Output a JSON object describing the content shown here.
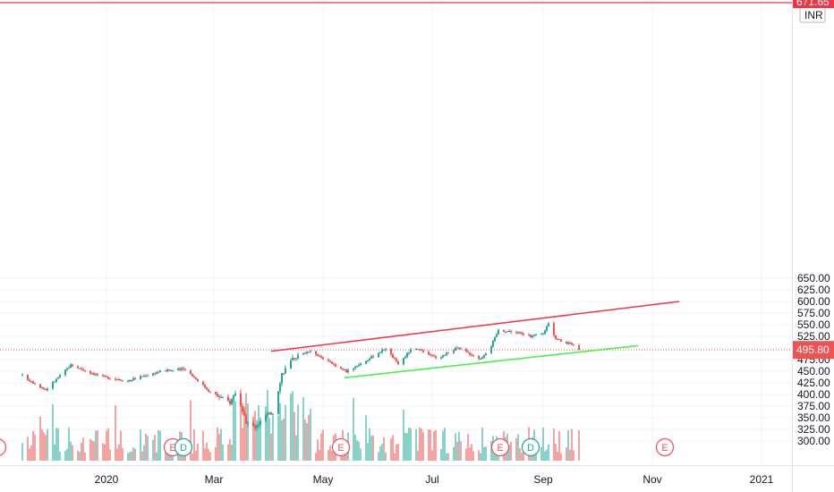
{
  "chart_data": {
    "type": "candlestick",
    "currency": "INR",
    "y_axis": {
      "min": 270,
      "max": 675,
      "ticks": [
        "650.00",
        "625.00",
        "600.00",
        "575.00",
        "550.00",
        "525.00",
        "500.00",
        "475.00",
        "450.00",
        "425.00",
        "400.00",
        "375.00",
        "350.00",
        "325.00",
        "300.00"
      ]
    },
    "x_axis": {
      "labels": [
        "2020",
        "Mar",
        "May",
        "Jul",
        "Sep",
        "Nov",
        "2021"
      ]
    },
    "last_price": {
      "value": 495.8,
      "label": "495.80",
      "color": "#ef5350"
    },
    "high_line": {
      "value": 671.65,
      "label": "671.65",
      "color": "#f23645"
    },
    "colors": {
      "up": "#26a69a",
      "down": "#ef5350",
      "upper_trendline": "#f23645",
      "lower_trendline": "#4ef04e"
    },
    "trendlines": [
      {
        "name": "",
        "color": "upper",
        "from": {
          "date": "2020-04-02",
          "price": 493
        },
        "to": {
          "date": "2020-11-16",
          "price": 600
        }
      },
      {
        "name": "",
        "color": "lower",
        "from": {
          "date": "2020-05-13",
          "price": 436
        },
        "to": {
          "date": "2020-10-24",
          "price": 505
        }
      }
    ],
    "keypoints": [
      {
        "date": "2019-11-15",
        "price": 440
      },
      {
        "date": "2019-11-28",
        "price": 410
      },
      {
        "date": "2019-12-12",
        "price": 463
      },
      {
        "date": "2019-12-30",
        "price": 438
      },
      {
        "date": "2020-01-13",
        "price": 430
      },
      {
        "date": "2020-01-31",
        "price": 450
      },
      {
        "date": "2020-02-14",
        "price": 455
      },
      {
        "date": "2020-02-28",
        "price": 405
      },
      {
        "date": "2020-03-10",
        "price": 383
      },
      {
        "date": "2020-03-13",
        "price": 405
      },
      {
        "date": "2020-03-19",
        "price": 340
      },
      {
        "date": "2020-03-24",
        "price": 328
      },
      {
        "date": "2020-03-30",
        "price": 355
      },
      {
        "date": "2020-04-03",
        "price": 360
      },
      {
        "date": "2020-04-08",
        "price": 445
      },
      {
        "date": "2020-04-15",
        "price": 480
      },
      {
        "date": "2020-04-24",
        "price": 495
      },
      {
        "date": "2020-05-05",
        "price": 468
      },
      {
        "date": "2020-05-14",
        "price": 450
      },
      {
        "date": "2020-05-26",
        "price": 475
      },
      {
        "date": "2020-06-05",
        "price": 500
      },
      {
        "date": "2020-06-12",
        "price": 465
      },
      {
        "date": "2020-06-20",
        "price": 500
      },
      {
        "date": "2020-07-04",
        "price": 478
      },
      {
        "date": "2020-07-15",
        "price": 500
      },
      {
        "date": "2020-07-28",
        "price": 477
      },
      {
        "date": "2020-08-03",
        "price": 505
      },
      {
        "date": "2020-08-07",
        "price": 538
      },
      {
        "date": "2020-08-16",
        "price": 535
      },
      {
        "date": "2020-08-25",
        "price": 525
      },
      {
        "date": "2020-09-01",
        "price": 530
      },
      {
        "date": "2020-09-04",
        "price": 555
      },
      {
        "date": "2020-09-08",
        "price": 520
      },
      {
        "date": "2020-09-16",
        "price": 508
      },
      {
        "date": "2020-09-21",
        "price": 496
      }
    ],
    "events": [
      {
        "label": "E",
        "date": "2019-11-01"
      },
      {
        "label": "E",
        "date": "2020-02-07"
      },
      {
        "label": "D",
        "date": "2020-02-13"
      },
      {
        "label": "E",
        "date": "2020-05-11"
      },
      {
        "label": "E",
        "date": "2020-08-08"
      },
      {
        "label": "D",
        "date": "2020-08-25"
      },
      {
        "label": "E",
        "date": "2020-11-08"
      }
    ]
  }
}
